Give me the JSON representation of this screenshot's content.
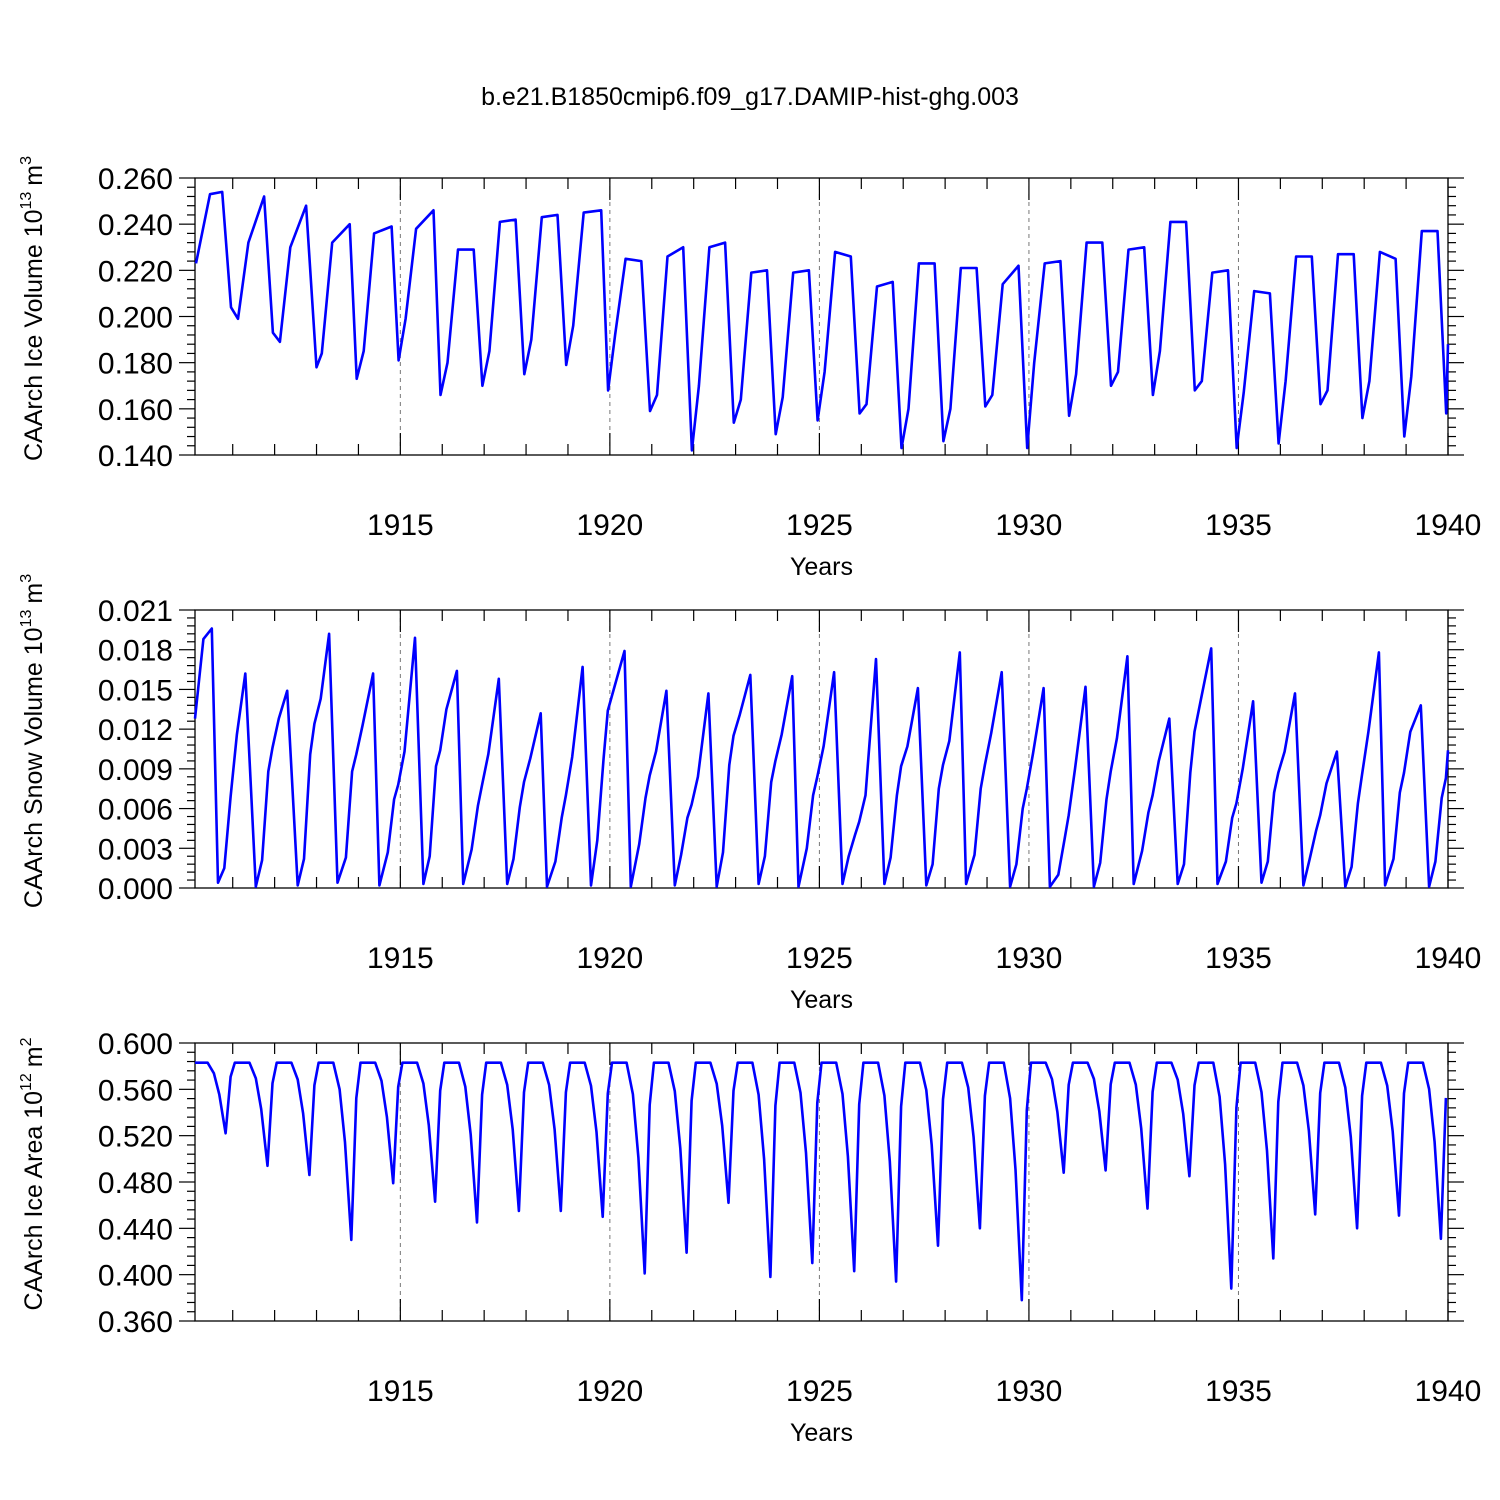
{
  "title": "b.e21.B1850cmip6.f09_g17.DAMIP-hist-ghg.003",
  "chart_data": [
    {
      "type": "line",
      "ylabel": "CAArch Ice Volume 10",
      "yunit_exp": "13",
      "yunit": "m",
      "yunit_pow": "3",
      "xlabel": "Years",
      "xlim": [
        1910.1,
        1940.0
      ],
      "ylim": [
        0.14,
        0.26
      ],
      "xticks": [
        "1915",
        "1920",
        "1925",
        "1930",
        "1935",
        "1940"
      ],
      "yticks": [
        "0.260",
        "0.240",
        "0.220",
        "0.200",
        "0.180",
        "0.160",
        "0.140"
      ],
      "series": [
        {
          "name": "CAArch Ice Volume",
          "color": "#0000ff",
          "monthly_start": 1910.125,
          "x": [
            1910.125,
            1910.458,
            1910.75,
            1910.958,
            1911.125,
            1911.375,
            1911.75,
            1911.958,
            1912.125,
            1912.375,
            1912.75,
            1913.0,
            1913.125,
            1913.375,
            1913.792,
            1913.958,
            1914.125,
            1914.375,
            1914.792,
            1914.958,
            1915.125,
            1915.375,
            1915.792,
            1915.958,
            1916.125,
            1916.375,
            1916.75,
            1916.958,
            1917.125,
            1917.375,
            1917.75,
            1917.958,
            1918.125,
            1918.375,
            1918.75,
            1918.958,
            1919.125,
            1919.375,
            1919.792,
            1919.958,
            1920.125,
            1920.375,
            1920.75,
            1920.958,
            1921.125,
            1921.375,
            1921.75,
            1921.958,
            1922.125,
            1922.375,
            1922.75,
            1922.958,
            1923.125,
            1923.375,
            1923.75,
            1923.958,
            1924.125,
            1924.375,
            1924.75,
            1924.958,
            1925.125,
            1925.375,
            1925.75,
            1925.958,
            1926.125,
            1926.375,
            1926.75,
            1926.958,
            1927.125,
            1927.375,
            1927.75,
            1927.958,
            1928.125,
            1928.375,
            1928.75,
            1928.958,
            1929.125,
            1929.375,
            1929.75,
            1929.958,
            1930.125,
            1930.375,
            1930.75,
            1930.958,
            1931.125,
            1931.375,
            1931.75,
            1931.958,
            1932.125,
            1932.375,
            1932.75,
            1932.958,
            1933.125,
            1933.375,
            1933.75,
            1933.958,
            1934.125,
            1934.375,
            1934.75,
            1934.958,
            1935.125,
            1935.375,
            1935.75,
            1935.958,
            1936.125,
            1936.375,
            1936.75,
            1936.958,
            1937.125,
            1937.375,
            1937.75,
            1937.958,
            1938.125,
            1938.375,
            1938.75,
            1938.958,
            1939.125,
            1939.375,
            1939.75,
            1939.958,
            1940.0
          ],
          "values": [
            0.223,
            0.253,
            0.254,
            0.204,
            0.199,
            0.232,
            0.252,
            0.193,
            0.189,
            0.23,
            0.248,
            0.178,
            0.184,
            0.232,
            0.24,
            0.173,
            0.185,
            0.236,
            0.239,
            0.181,
            0.199,
            0.238,
            0.246,
            0.166,
            0.18,
            0.229,
            0.229,
            0.17,
            0.185,
            0.241,
            0.242,
            0.175,
            0.19,
            0.243,
            0.244,
            0.179,
            0.196,
            0.245,
            0.246,
            0.168,
            0.192,
            0.225,
            0.224,
            0.159,
            0.166,
            0.226,
            0.23,
            0.142,
            0.17,
            0.23,
            0.232,
            0.154,
            0.164,
            0.219,
            0.22,
            0.149,
            0.165,
            0.219,
            0.22,
            0.155,
            0.176,
            0.228,
            0.226,
            0.158,
            0.162,
            0.213,
            0.215,
            0.143,
            0.16,
            0.223,
            0.223,
            0.146,
            0.16,
            0.221,
            0.221,
            0.161,
            0.166,
            0.214,
            0.222,
            0.143,
            0.18,
            0.223,
            0.224,
            0.157,
            0.175,
            0.232,
            0.232,
            0.17,
            0.176,
            0.229,
            0.23,
            0.166,
            0.185,
            0.241,
            0.241,
            0.168,
            0.172,
            0.219,
            0.22,
            0.143,
            0.167,
            0.211,
            0.21,
            0.145,
            0.172,
            0.226,
            0.226,
            0.162,
            0.168,
            0.227,
            0.227,
            0.156,
            0.172,
            0.228,
            0.225,
            0.148,
            0.174,
            0.237,
            0.237,
            0.158,
            0.188
          ]
        }
      ]
    },
    {
      "type": "line",
      "ylabel": "CAArch Snow Volume 10",
      "yunit_exp": "13",
      "yunit": "m",
      "yunit_pow": "3",
      "xlabel": "Years",
      "xlim": [
        1910.1,
        1940.0
      ],
      "ylim": [
        0.0,
        0.021
      ],
      "xticks": [
        "1915",
        "1920",
        "1925",
        "1930",
        "1935",
        "1940"
      ],
      "yticks": [
        "0.021",
        "0.018",
        "0.015",
        "0.012",
        "0.009",
        "0.006",
        "0.003",
        "0.000"
      ],
      "series": [
        {
          "name": "CAArch Snow Volume",
          "color": "#0000ff",
          "x": [
            1910.1,
            1910.3,
            1910.5,
            1910.65,
            1910.8,
            1910.95,
            1911.1,
            1911.3,
            1911.55,
            1911.7,
            1911.85,
            1911.95,
            1912.1,
            1912.3,
            1912.55,
            1912.7,
            1912.85,
            1912.95,
            1913.1,
            1913.3,
            1913.5,
            1913.7,
            1913.85,
            1913.95,
            1914.1,
            1914.35,
            1914.5,
            1914.7,
            1914.85,
            1914.95,
            1915.1,
            1915.35,
            1915.55,
            1915.7,
            1915.85,
            1915.95,
            1916.1,
            1916.35,
            1916.5,
            1916.7,
            1916.85,
            1916.95,
            1917.1,
            1917.35,
            1917.55,
            1917.7,
            1917.85,
            1917.95,
            1918.1,
            1918.35,
            1918.5,
            1918.7,
            1918.85,
            1918.95,
            1919.1,
            1919.35,
            1919.55,
            1919.7,
            1919.85,
            1919.95,
            1920.1,
            1920.35,
            1920.5,
            1920.7,
            1920.85,
            1920.95,
            1921.1,
            1921.35,
            1921.55,
            1921.7,
            1921.85,
            1921.95,
            1922.1,
            1922.35,
            1922.55,
            1922.7,
            1922.85,
            1922.95,
            1923.1,
            1923.35,
            1923.55,
            1923.7,
            1923.85,
            1923.95,
            1924.1,
            1924.35,
            1924.5,
            1924.7,
            1924.85,
            1924.95,
            1925.1,
            1925.35,
            1925.55,
            1925.7,
            1925.85,
            1925.95,
            1926.1,
            1926.35,
            1926.55,
            1926.7,
            1926.85,
            1926.95,
            1927.1,
            1927.35,
            1927.55,
            1927.7,
            1927.85,
            1927.95,
            1928.1,
            1928.35,
            1928.5,
            1928.7,
            1928.85,
            1928.95,
            1929.1,
            1929.35,
            1929.55,
            1929.7,
            1929.85,
            1929.95,
            1930.1,
            1930.35,
            1930.5,
            1930.7,
            1930.85,
            1930.95,
            1931.1,
            1931.35,
            1931.55,
            1931.7,
            1931.85,
            1931.95,
            1932.1,
            1932.35,
            1932.5,
            1932.7,
            1932.85,
            1932.95,
            1933.1,
            1933.35,
            1933.55,
            1933.7,
            1933.85,
            1933.95,
            1934.1,
            1934.35,
            1934.5,
            1934.7,
            1934.85,
            1934.95,
            1935.1,
            1935.35,
            1935.55,
            1935.7,
            1935.85,
            1935.95,
            1936.1,
            1936.35,
            1936.55,
            1936.7,
            1936.85,
            1936.95,
            1937.1,
            1937.35,
            1937.55,
            1937.7,
            1937.85,
            1937.95,
            1938.1,
            1938.35,
            1938.5,
            1938.7,
            1938.85,
            1938.95,
            1939.1,
            1939.35,
            1939.55,
            1939.7,
            1939.85,
            1939.95,
            1940.0
          ],
          "values": [
            0.0128,
            0.0188,
            0.0196,
            0.0004,
            0.0015,
            0.0069,
            0.0116,
            0.0162,
            0.0001,
            0.0021,
            0.0088,
            0.0106,
            0.0128,
            0.0149,
            0.0002,
            0.0022,
            0.0101,
            0.0124,
            0.0143,
            0.0192,
            0.0004,
            0.0023,
            0.0088,
            0.0101,
            0.0123,
            0.0162,
            0.0002,
            0.0027,
            0.0067,
            0.0078,
            0.0103,
            0.0189,
            0.0003,
            0.0024,
            0.0092,
            0.0104,
            0.0135,
            0.0164,
            0.0003,
            0.0029,
            0.0062,
            0.0078,
            0.0101,
            0.0158,
            0.0003,
            0.0022,
            0.0061,
            0.008,
            0.0098,
            0.0132,
            0.0001,
            0.002,
            0.0053,
            0.007,
            0.0099,
            0.0167,
            0.0002,
            0.0036,
            0.0098,
            0.0134,
            0.0151,
            0.0179,
            0.0001,
            0.0033,
            0.0068,
            0.0085,
            0.0103,
            0.0149,
            0.0002,
            0.0025,
            0.0053,
            0.0063,
            0.0084,
            0.0147,
            0.0001,
            0.0027,
            0.0093,
            0.0115,
            0.0131,
            0.0161,
            0.0003,
            0.0024,
            0.008,
            0.0096,
            0.0116,
            0.016,
            0.0001,
            0.003,
            0.007,
            0.0084,
            0.0107,
            0.0163,
            0.0003,
            0.0024,
            0.004,
            0.005,
            0.007,
            0.0173,
            0.0003,
            0.0023,
            0.007,
            0.0092,
            0.0107,
            0.0151,
            0.0002,
            0.0018,
            0.0075,
            0.0093,
            0.0111,
            0.0178,
            0.0003,
            0.0025,
            0.0075,
            0.0093,
            0.0117,
            0.0163,
            0.0001,
            0.0018,
            0.006,
            0.0075,
            0.0102,
            0.0151,
            0.0001,
            0.001,
            0.0037,
            0.0055,
            0.009,
            0.0152,
            0.0001,
            0.0019,
            0.0067,
            0.0088,
            0.0113,
            0.0175,
            0.0003,
            0.0028,
            0.0057,
            0.007,
            0.0096,
            0.0128,
            0.0003,
            0.0018,
            0.0087,
            0.0118,
            0.0142,
            0.0181,
            0.0003,
            0.002,
            0.0053,
            0.0064,
            0.009,
            0.0141,
            0.0004,
            0.002,
            0.0072,
            0.0087,
            0.0103,
            0.0147,
            0.0002,
            0.0022,
            0.0043,
            0.0055,
            0.0079,
            0.0103,
            0.0001,
            0.0016,
            0.0064,
            0.0086,
            0.0118,
            0.0178,
            0.0002,
            0.0022,
            0.0072,
            0.0087,
            0.0118,
            0.0138,
            0.0001,
            0.002,
            0.0068,
            0.0083,
            0.0104
          ]
        }
      ]
    },
    {
      "type": "line",
      "ylabel": "CAArch Ice Area 10",
      "yunit_exp": "12",
      "yunit": "m",
      "yunit_pow": "2",
      "xlabel": "Years",
      "xlim": [
        1910.1,
        1940.0
      ],
      "ylim": [
        0.36,
        0.6
      ],
      "xticks": [
        "1915",
        "1920",
        "1925",
        "1930",
        "1935",
        "1940"
      ],
      "yticks": [
        "0.600",
        "0.560",
        "0.520",
        "0.480",
        "0.440",
        "0.400",
        "0.360"
      ],
      "series": [
        {
          "name": "CAArch Ice Area",
          "color": "#0000ff",
          "minima": [
            0.522,
            0.494,
            0.486,
            0.43,
            0.479,
            0.463,
            0.445,
            0.455,
            0.455,
            0.45,
            0.401,
            0.419,
            0.462,
            0.398,
            0.41,
            0.403,
            0.394,
            0.425,
            0.44,
            0.378,
            0.488,
            0.49,
            0.457,
            0.485,
            0.388,
            0.414,
            0.452,
            0.44,
            0.451,
            0.431
          ],
          "max_value": 0.583,
          "first_year": 1910.6
        }
      ]
    }
  ]
}
